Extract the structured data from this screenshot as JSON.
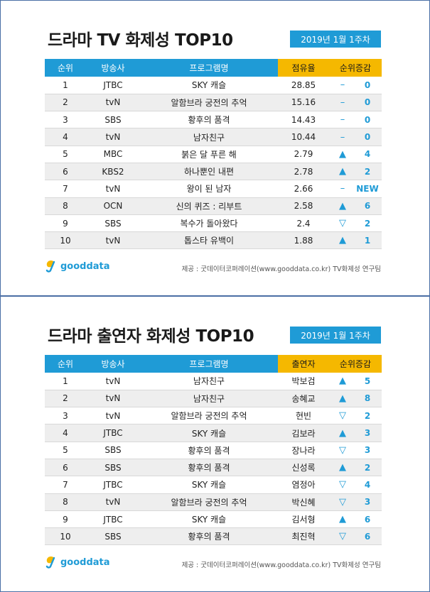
{
  "panels": [
    {
      "title": "드라마 TV 화제성 TOP10",
      "week": "2019년  1월 1주차",
      "headers": [
        "순위",
        "방송사",
        "프로그램명",
        "점유율",
        "순위증감"
      ],
      "rows": [
        {
          "rank": "1",
          "network": "JTBC",
          "program": "SKY 캐슬",
          "value": "28.85",
          "dir": "same",
          "symbol": "–",
          "change": "0"
        },
        {
          "rank": "2",
          "network": "tvN",
          "program": "알함브라 궁전의 추억",
          "value": "15.16",
          "dir": "same",
          "symbol": "–",
          "change": "0"
        },
        {
          "rank": "3",
          "network": "SBS",
          "program": "황후의 품격",
          "value": "14.43",
          "dir": "same",
          "symbol": "–",
          "change": "0"
        },
        {
          "rank": "4",
          "network": "tvN",
          "program": "남자친구",
          "value": "10.44",
          "dir": "same",
          "symbol": "–",
          "change": "0"
        },
        {
          "rank": "5",
          "network": "MBC",
          "program": "붉은 달 푸른 해",
          "value": "2.79",
          "dir": "up",
          "symbol": "▲",
          "change": "4"
        },
        {
          "rank": "6",
          "network": "KBS2",
          "program": "하나뿐인 내편",
          "value": "2.78",
          "dir": "up",
          "symbol": "▲",
          "change": "2"
        },
        {
          "rank": "7",
          "network": "tvN",
          "program": "왕이 된 남자",
          "value": "2.66",
          "dir": "same",
          "symbol": "–",
          "change": "NEW"
        },
        {
          "rank": "8",
          "network": "OCN",
          "program": "신의 퀴즈 : 리부트",
          "value": "2.58",
          "dir": "up",
          "symbol": "▲",
          "change": "6"
        },
        {
          "rank": "9",
          "network": "SBS",
          "program": "복수가 돌아왔다",
          "value": "2.4",
          "dir": "down",
          "symbol": "▽",
          "change": "2"
        },
        {
          "rank": "10",
          "network": "tvN",
          "program": "톱스타 유백이",
          "value": "1.88",
          "dir": "up",
          "symbol": "▲",
          "change": "1"
        }
      ],
      "logo_text": "gooddata",
      "credit": "제공 : 굿데이터코퍼레이션(www.gooddata.co.kr) TV화제성 연구팀"
    },
    {
      "title": "드라마 출연자 화제성 TOP10",
      "week": "2019년  1월 1주차",
      "headers": [
        "순위",
        "방송사",
        "프로그램명",
        "출연자",
        "순위증감"
      ],
      "rows": [
        {
          "rank": "1",
          "network": "tvN",
          "program": "남자친구",
          "value": "박보검",
          "dir": "up",
          "symbol": "▲",
          "change": "5"
        },
        {
          "rank": "2",
          "network": "tvN",
          "program": "남자친구",
          "value": "송혜교",
          "dir": "up",
          "symbol": "▲",
          "change": "8"
        },
        {
          "rank": "3",
          "network": "tvN",
          "program": "알함브라 궁전의 추억",
          "value": "현빈",
          "dir": "down",
          "symbol": "▽",
          "change": "2"
        },
        {
          "rank": "4",
          "network": "JTBC",
          "program": "SKY 캐슬",
          "value": "김보라",
          "dir": "up",
          "symbol": "▲",
          "change": "3"
        },
        {
          "rank": "5",
          "network": "SBS",
          "program": "황후의 품격",
          "value": "장나라",
          "dir": "down",
          "symbol": "▽",
          "change": "3"
        },
        {
          "rank": "6",
          "network": "SBS",
          "program": "황후의 품격",
          "value": "신성록",
          "dir": "up",
          "symbol": "▲",
          "change": "2"
        },
        {
          "rank": "7",
          "network": "JTBC",
          "program": "SKY 캐슬",
          "value": "염정아",
          "dir": "down",
          "symbol": "▽",
          "change": "4"
        },
        {
          "rank": "8",
          "network": "tvN",
          "program": "알함브라 궁전의 추억",
          "value": "박신혜",
          "dir": "down",
          "symbol": "▽",
          "change": "3"
        },
        {
          "rank": "9",
          "network": "JTBC",
          "program": "SKY 캐슬",
          "value": "김서형",
          "dir": "up",
          "symbol": "▲",
          "change": "6"
        },
        {
          "rank": "10",
          "network": "SBS",
          "program": "황후의 품격",
          "value": "최진혁",
          "dir": "down",
          "symbol": "▽",
          "change": "6"
        }
      ],
      "logo_text": "gooddata",
      "credit": "제공 : 굿데이터코퍼레이션(www.gooddata.co.kr) TV화제성 연구팀"
    }
  ],
  "colors": {
    "header_blue": "#1f9bd6",
    "header_highlight": "#f5b800",
    "row_stripe": "#eeeeee"
  }
}
